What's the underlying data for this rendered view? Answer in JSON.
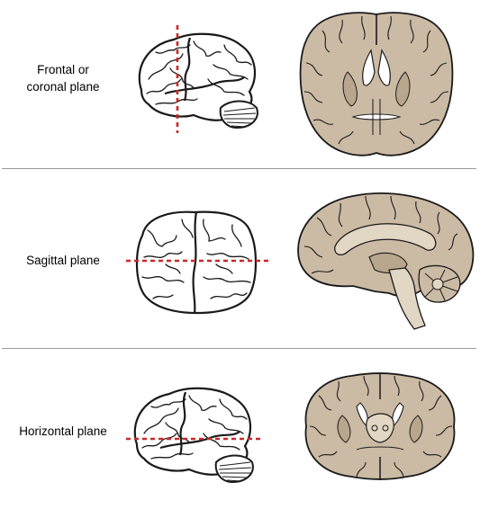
{
  "planes": [
    {
      "label_lines": [
        "Frontal or",
        "coronal plane"
      ]
    },
    {
      "label_lines": [
        "Sagittal plane"
      ]
    },
    {
      "label_lines": [
        "Horizontal plane"
      ]
    }
  ],
  "colors": {
    "tissue_fill": "#cbbba5",
    "tissue_dark": "#b8a68d",
    "white_matter": "#e2d6c4",
    "outline": "#1a1a1a",
    "cut_line": "#c8282b",
    "divider": "#9a9a9a"
  }
}
